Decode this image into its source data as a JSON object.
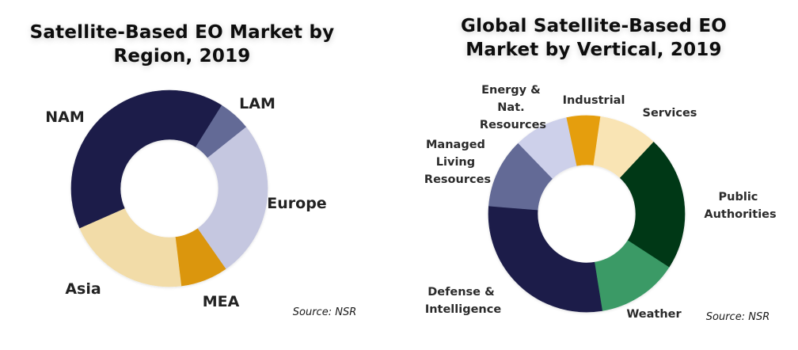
{
  "chart_data": [
    {
      "type": "pie",
      "variant": "donut",
      "title": "Satellite-Based EO Market by Region, 2019",
      "start": "top",
      "direction": "clockwise",
      "unit": "percent (estimated from slice angles)",
      "slices": [
        {
          "label": "LAM",
          "value": 5.4,
          "color": "#636a96"
        },
        {
          "label": "Europe",
          "value": 26.0,
          "color": "#c5c7e0"
        },
        {
          "label": "MEA",
          "value": 7.8,
          "color": "#db960c"
        },
        {
          "label": "Asia",
          "value": 20.3,
          "color": "#f2dca8"
        },
        {
          "label": "NAM",
          "value": 40.5,
          "color": "#1c1f4a"
        }
      ],
      "first_slice_start_deg": 32,
      "source": "Source: NSR",
      "legend": "none (direct labels)"
    },
    {
      "type": "pie",
      "variant": "donut",
      "title": "Global Satellite-Based EO Market by Vertical, 2019",
      "start": "top",
      "direction": "clockwise",
      "unit": "percent (estimated from slice angles)",
      "slices": [
        {
          "label": "Industrial",
          "value": 5.6,
          "color": "#e59e0d"
        },
        {
          "label": "Services",
          "value": 9.7,
          "color": "#f9e4b4"
        },
        {
          "label": "Public Authorities",
          "value": 22.2,
          "color": "#013718"
        },
        {
          "label": "Weather",
          "value": 13.3,
          "color": "#3a9a66"
        },
        {
          "label": "Defense & Intelligence",
          "value": 28.8,
          "color": "#1c1f4a"
        },
        {
          "label": "Managed Living Resources",
          "value": 11.5,
          "color": "#636a96"
        },
        {
          "label": "Energy & Nat. Resources",
          "value": 8.9,
          "color": "#cdd0ea"
        }
      ],
      "first_slice_start_deg": -12,
      "source": "Source: NSR",
      "legend": "none (direct labels)"
    }
  ],
  "labels": {
    "left": {
      "title_line1": "Satellite-Based EO Market by",
      "title_line2": "Region, 2019",
      "nam": "NAM",
      "lam": "LAM",
      "europe": "Europe",
      "mea": "MEA",
      "asia": "Asia",
      "source": "Source: NSR"
    },
    "right": {
      "title_line1": "Global Satellite-Based EO",
      "title_line2": "Market by Vertical, 2019",
      "energy": [
        "Energy &",
        "Nat.",
        "Resources"
      ],
      "industrial": "Industrial",
      "services": "Services",
      "managed": [
        "Managed",
        "Living",
        "Resources"
      ],
      "public": [
        "Public",
        "Authorities"
      ],
      "defense": [
        "Defense &",
        "Intelligence"
      ],
      "weather": "Weather",
      "source": "Source: NSR"
    }
  }
}
